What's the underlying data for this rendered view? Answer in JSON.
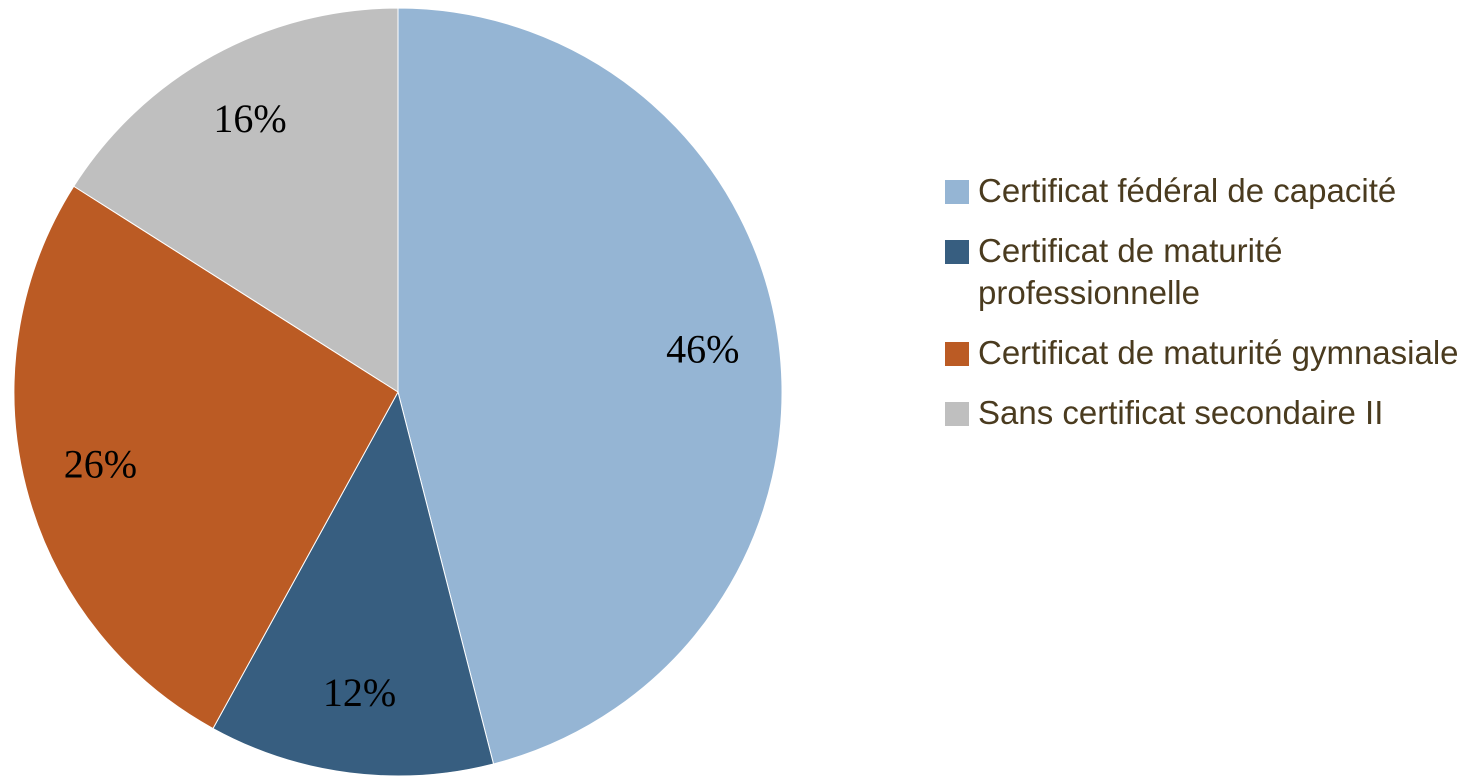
{
  "chart_data": {
    "type": "pie",
    "categories": [
      "Certificat fédéral de capacité",
      "Certificat de maturité professionnelle",
      "Certificat de maturité gymnasiale",
      "Sans certificat secondaire II"
    ],
    "values": [
      46,
      12,
      26,
      16
    ],
    "value_labels": [
      "46%",
      "12%",
      "26%",
      "16%"
    ],
    "colors": [
      "#95b5d4",
      "#375e80",
      "#bb5b24",
      "#bfbfbf"
    ],
    "legend": "right"
  }
}
